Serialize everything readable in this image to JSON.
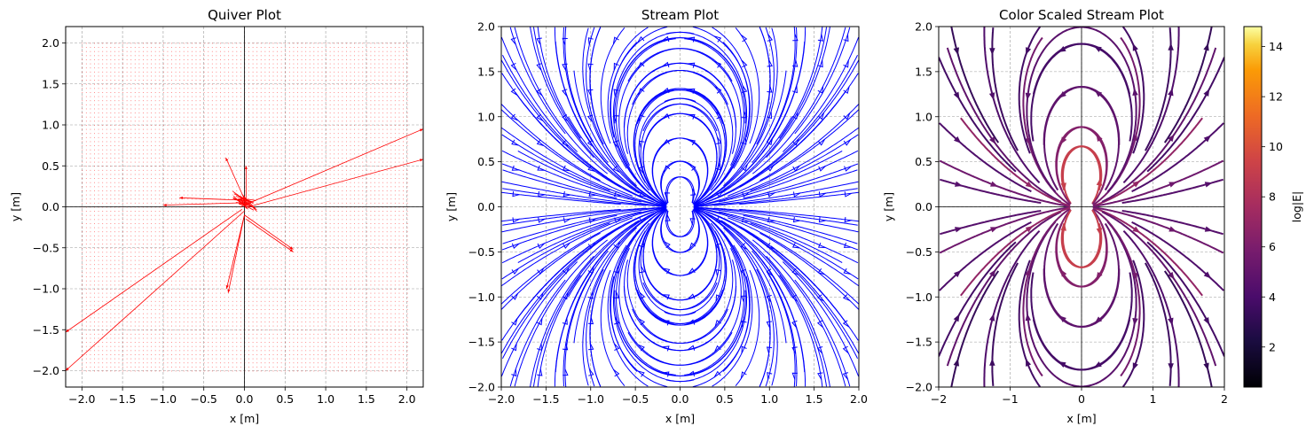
{
  "chart_data": [
    {
      "type": "quiver",
      "title": "Quiver Plot",
      "xlabel": "x [m]",
      "ylabel": "y [m]",
      "xlim": [
        -2.2,
        2.2
      ],
      "ylim": [
        -2.2,
        2.2
      ],
      "xticks": [
        -2.0,
        -1.5,
        -1.0,
        -0.5,
        0.0,
        0.5,
        1.0,
        1.5,
        2.0
      ],
      "yticks": [
        -2.0,
        -1.5,
        -1.0,
        -0.5,
        0.0,
        0.5,
        1.0,
        1.5,
        2.0
      ],
      "tick_labels_x": [
        "−2.0",
        "−1.5",
        "−1.0",
        "−0.5",
        "0.0",
        "0.5",
        "1.0",
        "1.5",
        "2.0"
      ],
      "tick_labels_y": [
        "−2.0",
        "−1.5",
        "−1.0",
        "−0.5",
        "0.0",
        "0.5",
        "1.0",
        "1.5",
        "2.0"
      ],
      "grid": true,
      "color": "#ff0000",
      "arrows": [
        {
          "x": -0.05,
          "y": 0.0,
          "u": 2.25,
          "v": 0.95
        },
        {
          "x": 0.05,
          "y": 0.0,
          "u": 2.15,
          "v": 0.58
        },
        {
          "x": -0.03,
          "y": -0.03,
          "u": -2.17,
          "v": -1.5
        },
        {
          "x": 0.0,
          "y": -0.05,
          "u": -2.2,
          "v": -1.95
        },
        {
          "x": 0.0,
          "y": -0.1,
          "u": 0.6,
          "v": -0.42
        },
        {
          "x": 0.02,
          "y": -0.15,
          "u": 0.58,
          "v": -0.4
        },
        {
          "x": 0.0,
          "y": 0.05,
          "u": -1.0,
          "v": -0.03
        },
        {
          "x": 0.0,
          "y": 0.08,
          "u": -0.8,
          "v": 0.03
        },
        {
          "x": 0.02,
          "y": 0.05,
          "u": -0.25,
          "v": 0.55
        },
        {
          "x": 0.02,
          "y": 0.05,
          "u": 0.0,
          "v": 0.45
        },
        {
          "x": 0.0,
          "y": -0.1,
          "u": -0.2,
          "v": -0.95
        },
        {
          "x": 0.0,
          "y": -0.1,
          "u": -0.22,
          "v": -0.9
        }
      ]
    },
    {
      "type": "streamplot",
      "title": "Stream Plot",
      "xlabel": "x [m]",
      "ylabel": "y [m]",
      "xlim": [
        -2.0,
        2.0
      ],
      "ylim": [
        -2.0,
        2.0
      ],
      "xticks": [
        -2.0,
        -1.5,
        -1.0,
        -0.5,
        0.0,
        0.5,
        1.0,
        1.5,
        2.0
      ],
      "yticks": [
        -2.0,
        -1.5,
        -1.0,
        -0.5,
        0.0,
        0.5,
        1.0,
        1.5,
        2.0
      ],
      "tick_labels_x": [
        "−2.0",
        "−1.5",
        "−1.0",
        "−0.5",
        "0.0",
        "0.5",
        "1.0",
        "1.5",
        "2.0"
      ],
      "tick_labels_y": [
        "−2.0",
        "−1.5",
        "−1.0",
        "−0.5",
        "0.0",
        "0.5",
        "1.0",
        "1.5",
        "2.0"
      ],
      "grid": true,
      "color": "#0000ff"
    },
    {
      "type": "streamplot",
      "title": "Color Scaled Stream Plot",
      "xlabel": "x [m]",
      "ylabel": "y [m]",
      "xlim": [
        -2,
        2
      ],
      "ylim": [
        -2.0,
        2.0
      ],
      "xticks": [
        -2,
        -1,
        0,
        1,
        2
      ],
      "yticks": [
        -2.0,
        -1.5,
        -1.0,
        -0.5,
        0.0,
        0.5,
        1.0,
        1.5,
        2.0
      ],
      "tick_labels_x": [
        "−2",
        "−1",
        "0",
        "1",
        "2"
      ],
      "tick_labels_y": [
        "−2.0",
        "−1.5",
        "−1.0",
        "−0.5",
        "0.0",
        "0.5",
        "1.0",
        "1.5",
        "2.0"
      ],
      "grid": true,
      "colormap": "inferno",
      "colorbar": {
        "label": "log|E|",
        "range": [
          0.4,
          14.8
        ],
        "ticks": [
          2,
          4,
          6,
          8,
          10,
          12,
          14
        ],
        "tick_labels": [
          "2",
          "4",
          "6",
          "8",
          "10",
          "12",
          "14"
        ]
      }
    }
  ]
}
